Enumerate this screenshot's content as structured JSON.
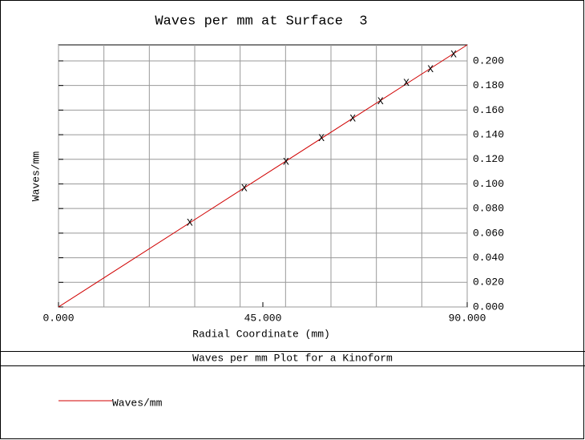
{
  "chart_data": {
    "type": "line",
    "title": "Waves per mm at Surface  3",
    "x_label": "Radial Coordinate (mm)",
    "y_label": "Waves/mm",
    "footer": "Waves per mm Plot for a Kinoform",
    "xlim": [
      0,
      90
    ],
    "ylim": [
      0,
      0.213
    ],
    "xticks": [
      {
        "value": 0,
        "label": "0.000"
      },
      {
        "value": 45,
        "label": "45.000"
      },
      {
        "value": 90,
        "label": "90.000"
      }
    ],
    "xgrid": [
      0,
      10,
      20,
      30,
      40,
      50,
      60,
      70,
      80,
      90
    ],
    "yticks": [
      {
        "value": 0,
        "label": "0.000"
      },
      {
        "value": 0.02,
        "label": "0.020"
      },
      {
        "value": 0.04,
        "label": "0.040"
      },
      {
        "value": 0.06,
        "label": "0.060"
      },
      {
        "value": 0.08,
        "label": "0.080"
      },
      {
        "value": 0.1,
        "label": "0.100"
      },
      {
        "value": 0.12,
        "label": "0.120"
      },
      {
        "value": 0.14,
        "label": "0.140"
      },
      {
        "value": 0.16,
        "label": "0.160"
      },
      {
        "value": 0.18,
        "label": "0.180"
      },
      {
        "value": 0.2,
        "label": "0.200"
      }
    ],
    "grid": true,
    "series": [
      {
        "name": "Waves/mm",
        "color": "#d00000",
        "x": [
          0,
          90
        ],
        "values": [
          0,
          0.213
        ]
      }
    ],
    "points": {
      "marker": "X",
      "x": [
        28.9,
        40.9,
        50.1,
        57.9,
        64.8,
        70.9,
        76.6,
        81.9,
        87.0
      ],
      "values": [
        0.0684,
        0.0964,
        0.118,
        0.137,
        0.153,
        0.167,
        0.182,
        0.193,
        0.205
      ]
    }
  }
}
